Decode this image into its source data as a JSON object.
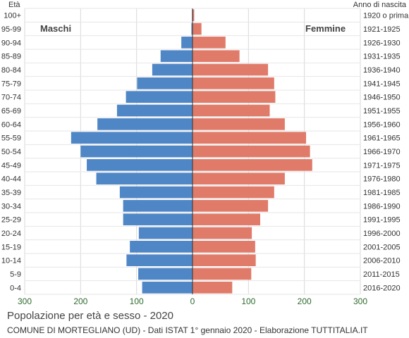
{
  "chart_data": {
    "type": "bar",
    "title": "Popolazione per età e sesso - 2020",
    "subtitle": "COMUNE DI MORTEGLIANO (UD) - Dati ISTAT 1° gennaio 2020 - Elaborazione TUTTITALIA.IT",
    "left_header": "Età",
    "right_header": "Anno di nascita",
    "left_series_label": "Maschi",
    "right_series_label": "Femmine",
    "xlim": [
      -300,
      300
    ],
    "x_ticks": [
      -300,
      -200,
      -100,
      0,
      100,
      200,
      300
    ],
    "x_tick_labels": [
      "300",
      "200",
      "100",
      "0",
      "100",
      "200",
      "300"
    ],
    "grid": true,
    "categories": [
      "100+",
      "95-99",
      "90-94",
      "85-89",
      "80-84",
      "75-79",
      "70-74",
      "65-69",
      "60-64",
      "55-59",
      "50-54",
      "45-49",
      "40-44",
      "35-39",
      "30-34",
      "25-29",
      "20-24",
      "15-19",
      "10-14",
      "5-9",
      "0-4"
    ],
    "birth_years": [
      "1920 o prima",
      "1921-1925",
      "1926-1930",
      "1931-1935",
      "1936-1940",
      "1941-1945",
      "1946-1950",
      "1951-1955",
      "1956-1960",
      "1961-1965",
      "1966-1970",
      "1971-1975",
      "1976-1980",
      "1981-1985",
      "1986-1990",
      "1991-1995",
      "1996-2000",
      "2001-2005",
      "2006-2010",
      "2011-2015",
      "2016-2020"
    ],
    "series": [
      {
        "name": "Maschi",
        "color": "#4f86c6",
        "values": [
          1,
          2,
          20,
          57,
          72,
          99,
          119,
          135,
          170,
          217,
          200,
          189,
          172,
          130,
          124,
          124,
          96,
          112,
          118,
          97,
          90
        ]
      },
      {
        "name": "Femmine",
        "color": "#e07b6a",
        "values": [
          3,
          16,
          59,
          84,
          135,
          146,
          148,
          138,
          165,
          203,
          210,
          214,
          165,
          146,
          135,
          121,
          106,
          112,
          113,
          105,
          71
        ]
      }
    ]
  }
}
